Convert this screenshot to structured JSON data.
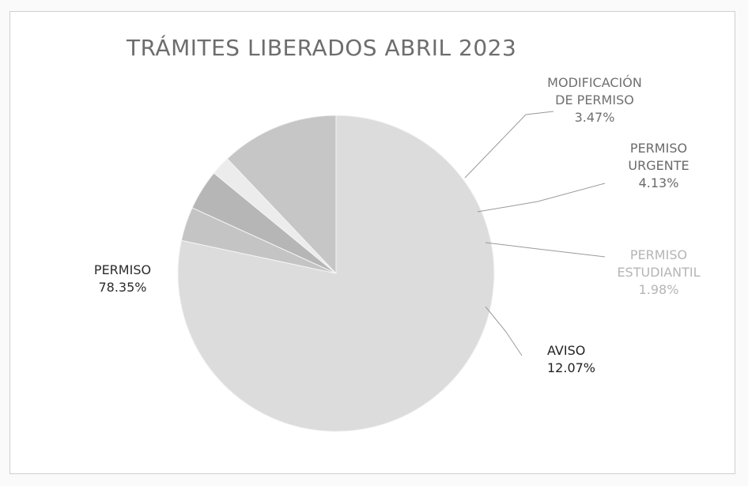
{
  "chart_data": {
    "type": "pie",
    "title": "TRÁMITES LIBERADOS ABRIL 2023",
    "categories": [
      "PERMISO",
      "MODIFICACIÓN DE PERMISO",
      "PERMISO URGENTE",
      "PERMISO ESTUDIANTIL",
      "AVISO"
    ],
    "values": [
      78.35,
      3.47,
      4.13,
      1.98,
      12.07
    ],
    "value_labels": [
      "78.35%",
      "3.47%",
      "4.13%",
      "1.98%",
      "12.07%"
    ],
    "label_lines": [
      [
        "PERMISO"
      ],
      [
        "MODIFICACIÓN",
        "DE PERMISO"
      ],
      [
        "PERMISO",
        "URGENTE"
      ],
      [
        "PERMISO",
        "ESTUDIANTIL"
      ],
      [
        "AVISO"
      ]
    ],
    "colors": [
      "#dcdcdc",
      "#c4c4c4",
      "#b6b6b6",
      "#ececec",
      "#c6c6c6"
    ],
    "label_colors": [
      "#2b2b2b",
      "#707070",
      "#6a6a6a",
      "#b5b5b5",
      "#222222"
    ],
    "legend": "none",
    "start_direction": "top, clockwise from PERMISO"
  }
}
